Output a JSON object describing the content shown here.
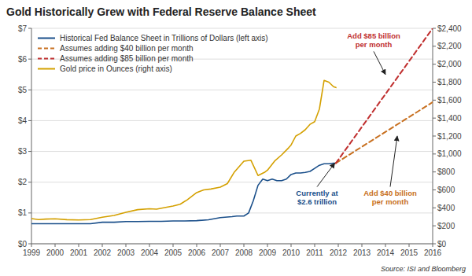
{
  "chart_data": {
    "type": "line",
    "title": "Gold Historically Grew with Federal Reserve Balance Sheet",
    "source": "Source: ISI and Bloomberg",
    "xlim": [
      1999,
      2016
    ],
    "xticks": [
      1999,
      2000,
      2001,
      2002,
      2003,
      2004,
      2005,
      2006,
      2007,
      2008,
      2009,
      2010,
      2011,
      2012,
      2013,
      2014,
      2015,
      2016
    ],
    "ylim": [
      0,
      7
    ],
    "yticks": [
      {
        "value": 0,
        "label": "$0"
      },
      {
        "value": 1,
        "label": "$1"
      },
      {
        "value": 2,
        "label": "$2"
      },
      {
        "value": 3,
        "label": "$3"
      },
      {
        "value": 4,
        "label": "$4"
      },
      {
        "value": 5,
        "label": "$5"
      },
      {
        "value": 6,
        "label": "$6"
      },
      {
        "value": 7,
        "label": "$7"
      }
    ],
    "y2lim": [
      0,
      2400
    ],
    "y2ticks": [
      {
        "value": 0,
        "label": "$0"
      },
      {
        "value": 200,
        "label": "$200"
      },
      {
        "value": 400,
        "label": "$400"
      },
      {
        "value": 600,
        "label": "$600"
      },
      {
        "value": 800,
        "label": "$800"
      },
      {
        "value": 1000,
        "label": "$1,000"
      },
      {
        "value": 1200,
        "label": "$1,200"
      },
      {
        "value": 1400,
        "label": "$1,400"
      },
      {
        "value": 1600,
        "label": "$1,600"
      },
      {
        "value": 1800,
        "label": "$1,800"
      },
      {
        "value": 2000,
        "label": "$2,000"
      },
      {
        "value": 2200,
        "label": "$2,200"
      },
      {
        "value": 2400,
        "label": "$2,400"
      }
    ],
    "grid": true,
    "legend": "upper left",
    "series": [
      {
        "name": "Historical Fed Balance Sheet in Trillions of Dollars (left axis)",
        "color": "#1a4f8a",
        "line_style": "solid",
        "x": [
          1999,
          1999.5,
          2000,
          2000.5,
          2001,
          2001.5,
          2002,
          2002.5,
          2003,
          2003.5,
          2004,
          2004.5,
          2005,
          2005.5,
          2006,
          2006.5,
          2007,
          2007.5,
          2007.7,
          2008.0,
          2008.2,
          2008.4,
          2008.6,
          2008.8,
          2009.0,
          2009.2,
          2009.4,
          2009.6,
          2009.8,
          2010.0,
          2010.2,
          2010.4,
          2010.6,
          2010.8,
          2011.0,
          2011.2,
          2011.4,
          2011.6,
          2011.8,
          2011.9
        ],
        "values": [
          0.65,
          0.65,
          0.65,
          0.65,
          0.65,
          0.65,
          0.7,
          0.7,
          0.72,
          0.72,
          0.73,
          0.73,
          0.74,
          0.74,
          0.75,
          0.78,
          0.85,
          0.88,
          0.9,
          0.9,
          1.0,
          1.4,
          1.9,
          2.1,
          2.05,
          2.1,
          2.05,
          2.05,
          2.1,
          2.25,
          2.3,
          2.3,
          2.32,
          2.35,
          2.45,
          2.55,
          2.6,
          2.6,
          2.62,
          2.62
        ]
      },
      {
        "name": "Assumes adding $40 billion per month",
        "color": "#c87020",
        "line_style": "dashed",
        "x": [
          2011.9,
          2016
        ],
        "values": [
          2.62,
          4.6
        ]
      },
      {
        "name": "Assumes adding $85 billion per month",
        "color": "#c03030",
        "line_style": "dashed",
        "x": [
          2011.9,
          2016
        ],
        "values": [
          2.62,
          7.0
        ]
      },
      {
        "name": "Gold price in Ounces (right axis)",
        "color": "#d4a000",
        "line_style": "solid",
        "axis": "y2",
        "x": [
          1999,
          1999.3,
          1999.6,
          2000,
          2000.5,
          2001,
          2001.5,
          2002,
          2002.5,
          2003,
          2003.5,
          2004,
          2004.3,
          2004.6,
          2005,
          2005.3,
          2005.6,
          2006,
          2006.3,
          2006.6,
          2007,
          2007.3,
          2007.6,
          2008.0,
          2008.3,
          2008.6,
          2008.9,
          2009.0,
          2009.3,
          2009.6,
          2009.9,
          2010.0,
          2010.2,
          2010.4,
          2010.6,
          2010.8,
          2011.0,
          2011.2,
          2011.4,
          2011.6,
          2011.8,
          2011.9
        ],
        "values": [
          280,
          270,
          275,
          278,
          268,
          265,
          270,
          295,
          315,
          350,
          380,
          390,
          385,
          400,
          420,
          440,
          490,
          570,
          600,
          610,
          630,
          670,
          800,
          920,
          930,
          760,
          800,
          820,
          920,
          990,
          1070,
          1100,
          1200,
          1230,
          1270,
          1330,
          1360,
          1500,
          1820,
          1800,
          1750,
          1740
        ]
      }
    ],
    "annotations": [
      {
        "text": "Currently at\n$2.6 trillion",
        "color": "#1a4f8a",
        "x": 2011.85,
        "y": 2.62,
        "text_x": 2011.1,
        "text_y": 1.8
      },
      {
        "text": "Add $40 billion\nper month",
        "color": "#c87020",
        "x": 2014.5,
        "y": 3.5,
        "text_x": 2014.2,
        "text_y": 1.8
      },
      {
        "text": "Add $85 billion\nper month",
        "color": "#c03030",
        "x": 2014.0,
        "y": 5.5,
        "text_x": 2013.5,
        "text_y": 6.3
      }
    ]
  }
}
